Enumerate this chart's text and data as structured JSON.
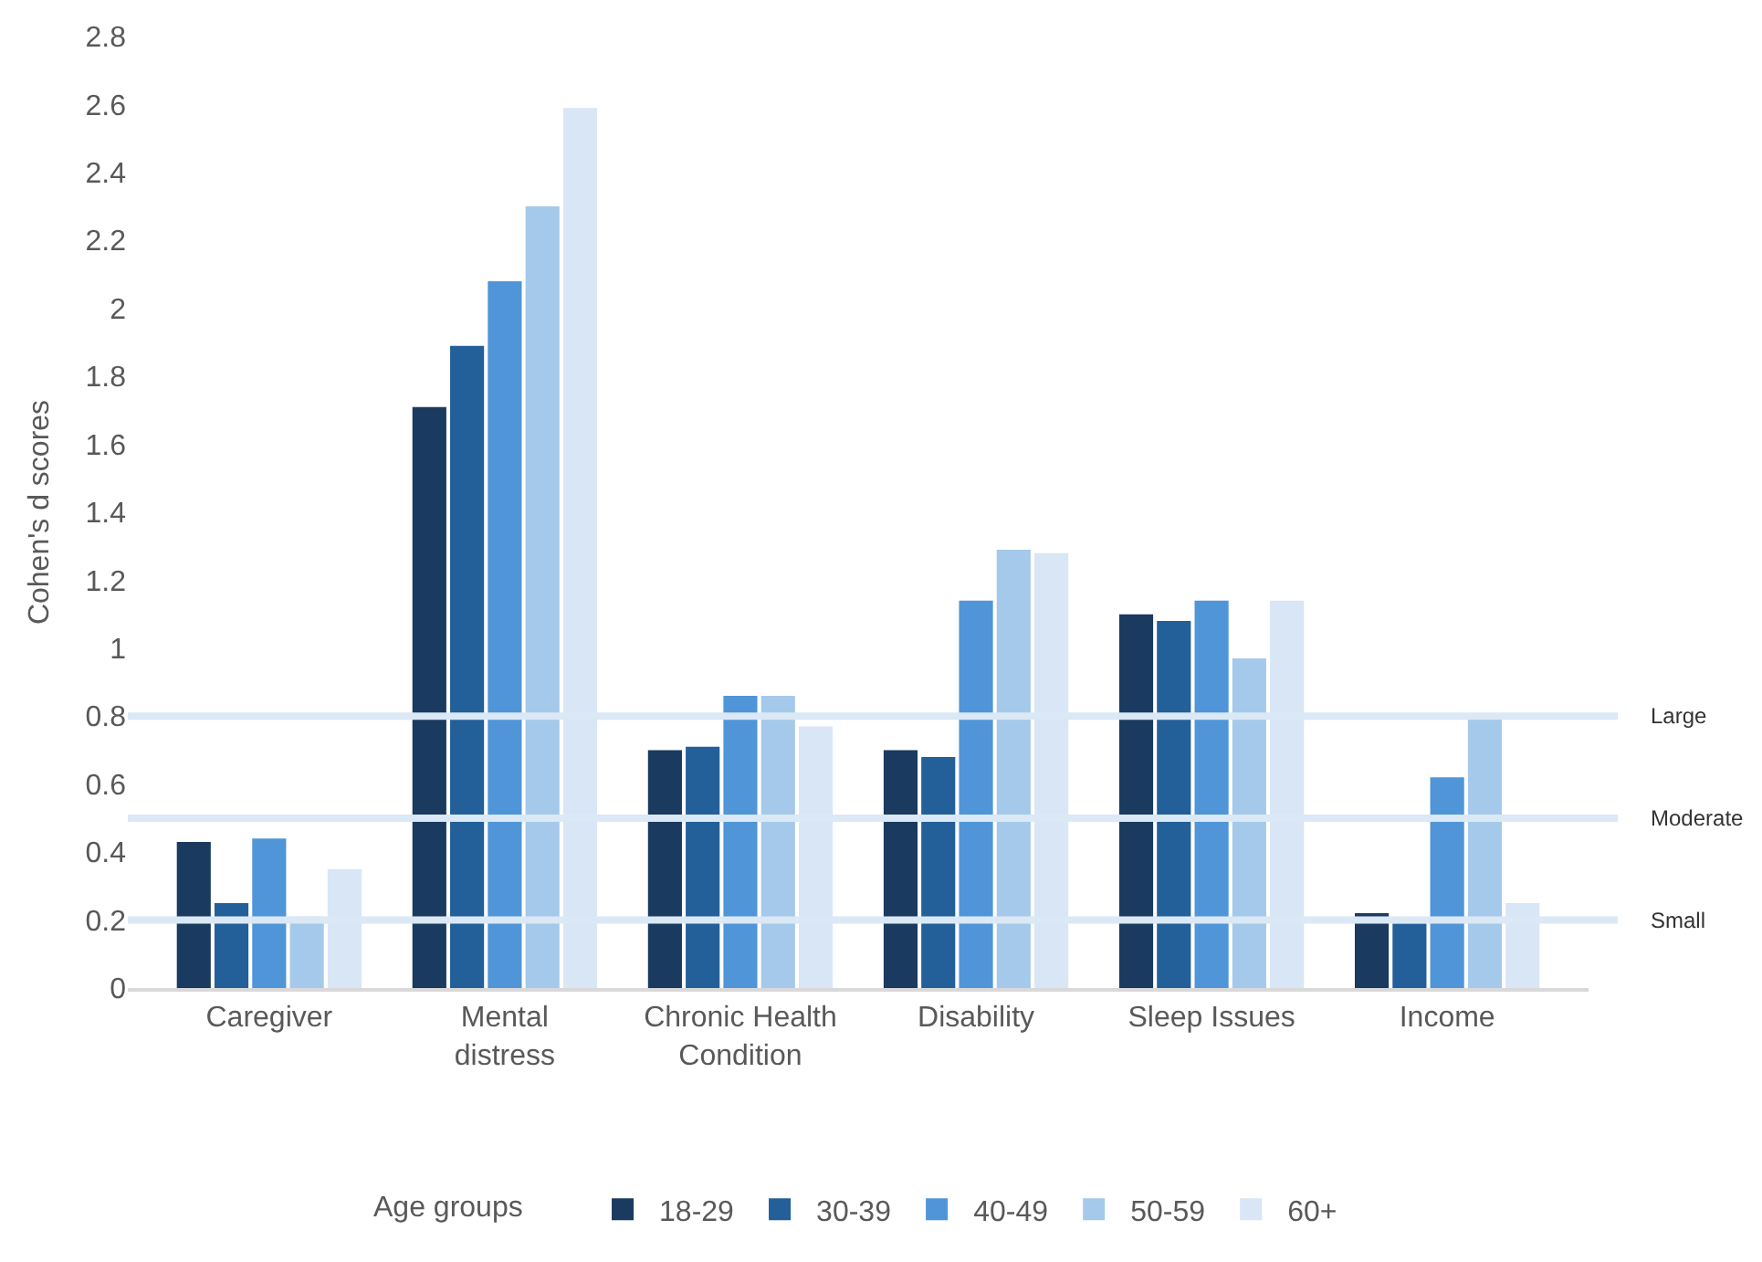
{
  "chart_data": {
    "type": "bar",
    "ylabel": "Cohen's d scores",
    "legend_title": "Age groups",
    "categories": [
      "Caregiver",
      "Mental distress",
      "Chronic Health Condition",
      "Disability",
      "Sleep Issues",
      "Income"
    ],
    "series": [
      {
        "name": "18-29",
        "color": "#1a3a5f",
        "values": [
          0.43,
          1.71,
          0.7,
          0.7,
          1.1,
          0.22
        ]
      },
      {
        "name": "30-39",
        "color": "#235f99",
        "values": [
          0.25,
          1.89,
          0.71,
          0.68,
          1.08,
          0.19
        ]
      },
      {
        "name": "40-49",
        "color": "#4f95d8",
        "values": [
          0.44,
          2.08,
          0.86,
          1.14,
          1.14,
          0.62
        ]
      },
      {
        "name": "50-59",
        "color": "#a5c9ea",
        "values": [
          0.21,
          2.3,
          0.86,
          1.29,
          0.97,
          0.8
        ]
      },
      {
        "name": "60+",
        "color": "#d9e6f5",
        "values": [
          0.35,
          2.59,
          0.77,
          1.28,
          1.14,
          0.25
        ]
      }
    ],
    "ylim": [
      0,
      2.8
    ],
    "yticks": [
      0,
      0.2,
      0.4,
      0.6,
      0.8,
      1,
      1.2,
      1.4,
      1.6,
      1.8,
      2,
      2.2,
      2.4,
      2.6,
      2.8
    ],
    "ref_lines": [
      {
        "axis": "y",
        "value": 0.8,
        "label": "Large",
        "color": "#dbe8f5"
      },
      {
        "axis": "y",
        "value": 0.5,
        "label": "Moderate",
        "color": "#dbe8f5"
      },
      {
        "axis": "y",
        "value": 0.2,
        "label": "Small",
        "color": "#dbe8f5"
      }
    ],
    "legend": "bottom"
  }
}
